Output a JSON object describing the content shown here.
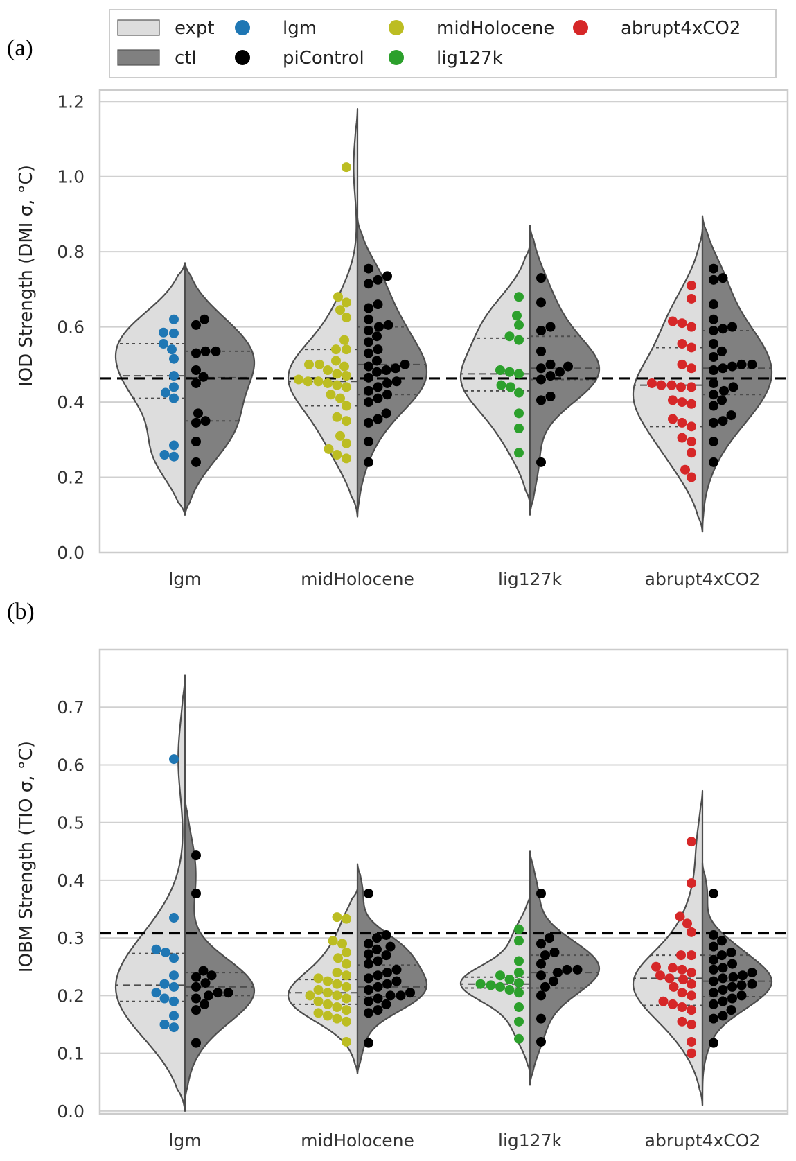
{
  "legend": {
    "items": [
      {
        "label": "expt",
        "kind": "patch",
        "color": "#dddddd"
      },
      {
        "label": "ctl",
        "kind": "patch",
        "color": "#808080"
      },
      {
        "label": "lgm",
        "kind": "dot",
        "color": "#1f77b4"
      },
      {
        "label": "piControl",
        "kind": "dot",
        "color": "#000000"
      },
      {
        "label": "midHolocene",
        "kind": "dot",
        "color": "#bcbd22"
      },
      {
        "label": "lig127k",
        "kind": "dot",
        "color": "#2ca02c"
      },
      {
        "label": "abrupt4xCO2",
        "kind": "dot",
        "color": "#d62728"
      }
    ],
    "placement": "top-center"
  },
  "chart_data": [
    {
      "panel_label": "(a)",
      "type": "violin-swarm",
      "title": "",
      "xlabel": "",
      "ylabel": "IOD Strength (DMI σ, °C)",
      "ylim": [
        0.0,
        1.23
      ],
      "yticks": [
        "0.0",
        "0.2",
        "0.4",
        "0.6",
        "0.8",
        "1.0",
        "1.2"
      ],
      "grid": true,
      "reference_line": 0.463,
      "categories": [
        "lgm",
        "midHolocene",
        "lig127k",
        "abrupt4xCO2"
      ],
      "groups": [
        {
          "category": "lgm",
          "expt": {
            "color": "#1f77b4",
            "range": [
              0.1,
              0.77
            ],
            "quartiles": [
              0.41,
              0.47,
              0.555
            ],
            "values": [
              0.62,
              0.585,
              0.583,
              0.555,
              0.54,
              0.515,
              0.47,
              0.44,
              0.425,
              0.41,
              0.285,
              0.26,
              0.255
            ]
          },
          "ctl": {
            "color": "#000000",
            "range": [
              0.1,
              0.77
            ],
            "quartiles": [
              0.35,
              0.465,
              0.535
            ],
            "values": [
              0.62,
              0.605,
              0.535,
              0.53,
              0.535,
              0.485,
              0.467,
              0.45,
              0.37,
              0.35,
              0.345,
              0.295,
              0.24
            ]
          }
        },
        {
          "category": "midHolocene",
          "expt": {
            "color": "#bcbd22",
            "range": [
              0.095,
              1.18
            ],
            "quartiles": [
              0.39,
              0.455,
              0.54
            ],
            "values": [
              1.025,
              0.68,
              0.665,
              0.645,
              0.625,
              0.565,
              0.54,
              0.54,
              0.51,
              0.5,
              0.5,
              0.495,
              0.485,
              0.475,
              0.47,
              0.46,
              0.455,
              0.455,
              0.45,
              0.445,
              0.44,
              0.42,
              0.41,
              0.39,
              0.36,
              0.35,
              0.31,
              0.29,
              0.275,
              0.26,
              0.25
            ]
          },
          "ctl": {
            "color": "#000000",
            "range": [
              0.095,
              0.89
            ],
            "quartiles": [
              0.42,
              0.5,
              0.6
            ],
            "values": [
              0.755,
              0.735,
              0.725,
              0.715,
              0.66,
              0.65,
              0.62,
              0.605,
              0.6,
              0.59,
              0.575,
              0.56,
              0.54,
              0.53,
              0.51,
              0.5,
              0.495,
              0.49,
              0.485,
              0.48,
              0.465,
              0.455,
              0.45,
              0.44,
              0.43,
              0.42,
              0.41,
              0.4,
              0.37,
              0.355,
              0.345,
              0.295,
              0.24
            ]
          }
        },
        {
          "category": "lig127k",
          "expt": {
            "color": "#2ca02c",
            "range": [
              0.13,
              0.82
            ],
            "quartiles": [
              0.43,
              0.475,
              0.57
            ],
            "values": [
              0.68,
              0.63,
              0.605,
              0.575,
              0.565,
              0.485,
              0.48,
              0.475,
              0.445,
              0.44,
              0.425,
              0.37,
              0.33,
              0.265
            ]
          },
          "ctl": {
            "color": "#000000",
            "range": [
              0.1,
              0.87
            ],
            "quartiles": [
              0.46,
              0.49,
              0.575
            ],
            "values": [
              0.73,
              0.665,
              0.6,
              0.59,
              0.535,
              0.5,
              0.495,
              0.49,
              0.48,
              0.47,
              0.46,
              0.415,
              0.405,
              0.24
            ]
          }
        },
        {
          "category": "abrupt4xCO2",
          "expt": {
            "color": "#d62728",
            "range": [
              0.055,
              0.86
            ],
            "quartiles": [
              0.335,
              0.445,
              0.545
            ],
            "values": [
              0.71,
              0.675,
              0.615,
              0.61,
              0.6,
              0.555,
              0.545,
              0.5,
              0.49,
              0.45,
              0.445,
              0.445,
              0.44,
              0.44,
              0.405,
              0.395,
              0.4,
              0.355,
              0.345,
              0.335,
              0.305,
              0.295,
              0.265,
              0.22,
              0.2
            ]
          },
          "ctl": {
            "color": "#000000",
            "range": [
              0.055,
              0.895
            ],
            "quartiles": [
              0.42,
              0.49,
              0.59
            ],
            "values": [
              0.755,
              0.73,
              0.725,
              0.66,
              0.62,
              0.6,
              0.595,
              0.59,
              0.555,
              0.535,
              0.52,
              0.5,
              0.5,
              0.495,
              0.49,
              0.485,
              0.45,
              0.44,
              0.43,
              0.42,
              0.405,
              0.39,
              0.365,
              0.35,
              0.345,
              0.295,
              0.24
            ]
          }
        }
      ]
    },
    {
      "panel_label": "(b)",
      "type": "violin-swarm",
      "title": "",
      "xlabel": "",
      "ylabel": "IOBM Strength (TIO σ, °C)",
      "ylim": [
        -0.005,
        0.8
      ],
      "yticks": [
        "0.0",
        "0.1",
        "0.2",
        "0.3",
        "0.4",
        "0.5",
        "0.6",
        "0.7"
      ],
      "grid": true,
      "reference_line": 0.308,
      "categories": [
        "lgm",
        "midHolocene",
        "lig127k",
        "abrupt4xCO2"
      ],
      "groups": [
        {
          "category": "lgm",
          "expt": {
            "color": "#1f77b4",
            "range": [
              0.0,
              0.755
            ],
            "quartiles": [
              0.19,
              0.218,
              0.273
            ],
            "values": [
              0.61,
              0.335,
              0.28,
              0.275,
              0.265,
              0.235,
              0.22,
              0.215,
              0.205,
              0.195,
              0.19,
              0.165,
              0.15,
              0.145
            ]
          },
          "ctl": {
            "color": "#000000",
            "range": [
              0.015,
              0.545
            ],
            "quartiles": [
              0.2,
              0.215,
              0.24
            ],
            "values": [
              0.443,
              0.377,
              0.243,
              0.235,
              0.232,
              0.222,
              0.215,
              0.205,
              0.205,
              0.2,
              0.195,
              0.185,
              0.175,
              0.118
            ]
          }
        },
        {
          "category": "midHolocene",
          "expt": {
            "color": "#bcbd22",
            "range": [
              0.065,
              0.385
            ],
            "quartiles": [
              0.185,
              0.205,
              0.228
            ],
            "values": [
              0.336,
              0.333,
              0.295,
              0.29,
              0.275,
              0.265,
              0.255,
              0.24,
              0.235,
              0.23,
              0.225,
              0.22,
              0.215,
              0.21,
              0.205,
              0.2,
              0.2,
              0.195,
              0.19,
              0.185,
              0.18,
              0.175,
              0.17,
              0.165,
              0.16,
              0.155,
              0.12
            ]
          },
          "ctl": {
            "color": "#000000",
            "range": [
              0.065,
              0.428
            ],
            "quartiles": [
              0.198,
              0.215,
              0.253
            ],
            "values": [
              0.377,
              0.305,
              0.3,
              0.29,
              0.285,
              0.28,
              0.272,
              0.27,
              0.26,
              0.255,
              0.245,
              0.24,
              0.235,
              0.23,
              0.225,
              0.22,
              0.215,
              0.21,
              0.205,
              0.2,
              0.2,
              0.195,
              0.19,
              0.185,
              0.175,
              0.17,
              0.118
            ]
          }
        },
        {
          "category": "lig127k",
          "expt": {
            "color": "#2ca02c",
            "range": [
              0.065,
              0.375
            ],
            "quartiles": [
              0.213,
              0.22,
              0.232
            ],
            "values": [
              0.315,
              0.295,
              0.26,
              0.24,
              0.235,
              0.228,
              0.222,
              0.22,
              0.218,
              0.215,
              0.21,
              0.205,
              0.18,
              0.155,
              0.125
            ]
          },
          "ctl": {
            "color": "#000000",
            "range": [
              0.045,
              0.45
            ],
            "quartiles": [
              0.213,
              0.24,
              0.27
            ],
            "values": [
              0.377,
              0.3,
              0.29,
              0.275,
              0.27,
              0.255,
              0.245,
              0.245,
              0.24,
              0.235,
              0.225,
              0.215,
              0.2,
              0.16,
              0.12
            ]
          }
        },
        {
          "category": "abrupt4xCO2",
          "expt": {
            "color": "#d62728",
            "range": [
              0.01,
              0.555
            ],
            "quartiles": [
              0.183,
              0.23,
              0.27
            ],
            "values": [
              0.467,
              0.395,
              0.337,
              0.325,
              0.31,
              0.27,
              0.27,
              0.25,
              0.248,
              0.245,
              0.24,
              0.235,
              0.23,
              0.228,
              0.22,
              0.215,
              0.205,
              0.2,
              0.19,
              0.185,
              0.18,
              0.175,
              0.155,
              0.15,
              0.12,
              0.1
            ]
          },
          "ctl": {
            "color": "#000000",
            "range": [
              0.01,
              0.43
            ],
            "quartiles": [
              0.198,
              0.225,
              0.27
            ],
            "values": [
              0.377,
              0.305,
              0.295,
              0.285,
              0.275,
              0.27,
              0.262,
              0.255,
              0.248,
              0.245,
              0.24,
              0.235,
              0.232,
              0.23,
              0.225,
              0.22,
              0.218,
              0.215,
              0.21,
              0.205,
              0.2,
              0.195,
              0.19,
              0.185,
              0.175,
              0.165,
              0.16,
              0.118
            ]
          }
        }
      ]
    }
  ]
}
